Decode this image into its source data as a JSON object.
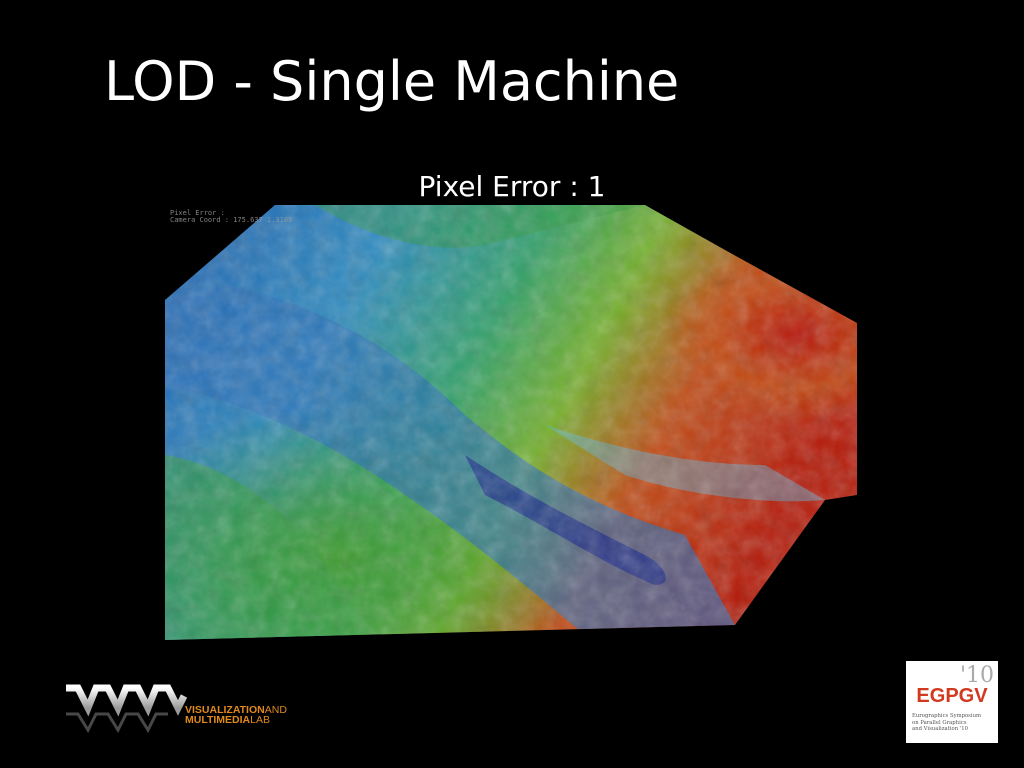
{
  "slide": {
    "title": "LOD - Single Machine",
    "subtitle": "Pixel Error : 1"
  },
  "hud": {
    "line1": "              ",
    "line2": "Pixel Error :",
    "line3": "Camera Coord : 175.637 1.3105"
  },
  "logos": {
    "wml": {
      "text_line1_bold": "VISUALIZATION",
      "text_line1_thin": "AND",
      "text_line2_bold": "MULTIMEDIA",
      "text_line2_thin": "LAB",
      "accent": "#e08a1c"
    },
    "egpgv": {
      "year": "'10",
      "name": "EGPGV",
      "sub_line1": "Eurographics Symposium",
      "sub_line2": "on Parallel Graphics",
      "sub_line3": "and Visualization '10",
      "accent": "#d23a1f"
    }
  }
}
